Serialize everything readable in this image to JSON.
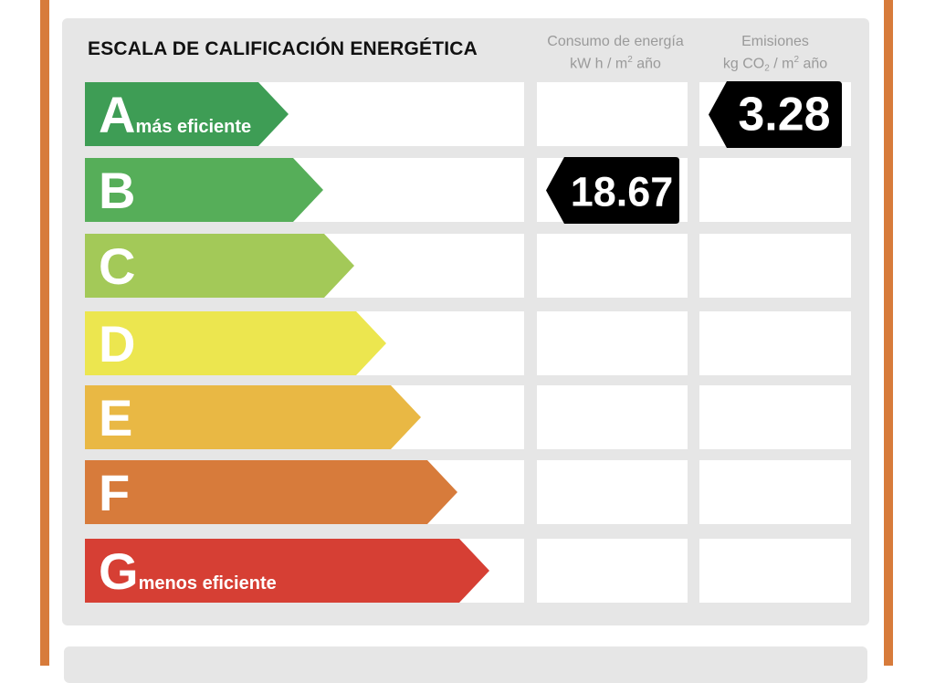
{
  "colors": {
    "frame": "#d77b3b",
    "panel": "#e6e6e6",
    "marker": "#000000"
  },
  "title": "ESCALA DE CALIFICACIÓN ENERGÉTICA",
  "columns": {
    "consumo": {
      "line1": "Consumo de energía",
      "line2_pre": "kW h / m",
      "line2_sup": "2",
      "line2_post": " año"
    },
    "emisiones": {
      "line1": "Emisiones",
      "line2_pre": "kg CO",
      "line2_sub": "2",
      "line2_mid": " / m",
      "line2_sup": "2",
      "line2_post": " año"
    }
  },
  "chart_data": {
    "type": "table",
    "title": "ESCALA DE CALIFICACIÓN ENERGÉTICA",
    "grades": [
      {
        "letter": "A",
        "label": "más eficiente",
        "color": "#3e9d55"
      },
      {
        "letter": "B",
        "label": "",
        "color": "#56ae59"
      },
      {
        "letter": "C",
        "label": "",
        "color": "#a3c958"
      },
      {
        "letter": "D",
        "label": "",
        "color": "#ece64f"
      },
      {
        "letter": "E",
        "label": "",
        "color": "#e9b844"
      },
      {
        "letter": "F",
        "label": "",
        "color": "#d77b3b"
      },
      {
        "letter": "G",
        "label": "menos eficiente",
        "color": "#d63f34"
      }
    ],
    "consumo": {
      "value": "18.67",
      "grade": "B"
    },
    "emisiones": {
      "value": "3.28",
      "grade": "A"
    }
  }
}
